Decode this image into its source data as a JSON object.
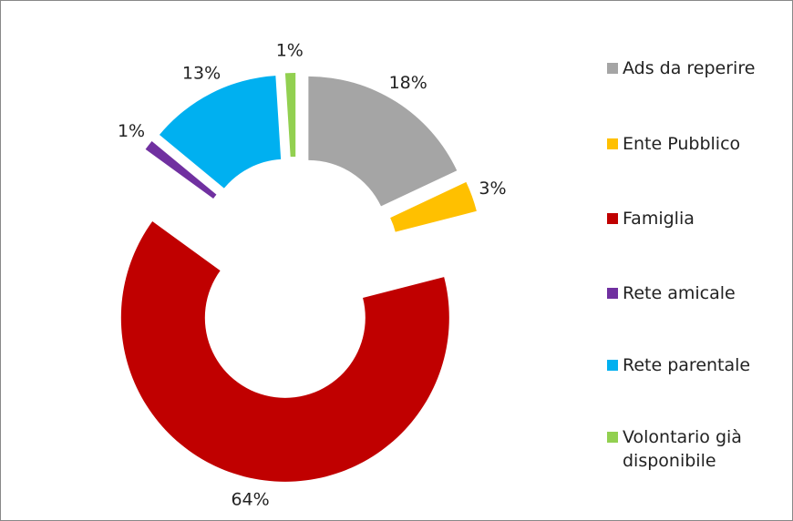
{
  "chart_data": {
    "type": "donut",
    "categories": [
      "Ads da reperire",
      "Ente Pubblico",
      "Famiglia",
      "Rete amicale",
      "Rete parentale",
      "Volontario già disponibile"
    ],
    "values": [
      18,
      3,
      64,
      1,
      13,
      1
    ],
    "value_labels": [
      "18%",
      "3%",
      "64%",
      "1%",
      "13%",
      "1%"
    ],
    "colors": [
      "#a5a5a5",
      "#ffc000",
      "#c00000",
      "#7030a0",
      "#00b0f0",
      "#92d050"
    ],
    "legend": "right"
  }
}
